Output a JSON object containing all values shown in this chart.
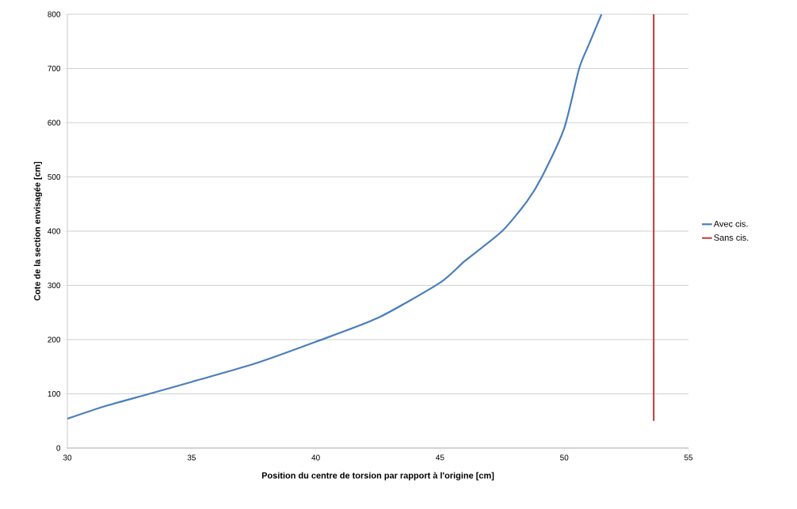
{
  "chart_data": {
    "type": "line",
    "xlabel": "Position du centre de torsion par rapport à l'origine [cm]",
    "ylabel": "Cote de la section envisagée [cm]",
    "xlim": [
      30,
      55
    ],
    "xticks": [
      30,
      35,
      40,
      45,
      50,
      55
    ],
    "ylim": [
      0,
      800
    ],
    "yticks": [
      0,
      100,
      200,
      300,
      400,
      500,
      600,
      700,
      800
    ],
    "grid": "y",
    "legend": "right",
    "marker": "none",
    "line_style": "solid",
    "series": [
      {
        "name": "Avec cis.",
        "color": "#4a7ebb",
        "x": [
          30,
          31.5,
          33.3,
          35,
          37.5,
          40,
          42.5,
          45,
          46,
          47.5,
          48.5,
          49.1,
          50,
          50.6,
          51,
          51.5
        ],
        "values": [
          54,
          77,
          100,
          122,
          155,
          196,
          240,
          305,
          345,
          400,
          455,
          500,
          590,
          700,
          745,
          800
        ]
      },
      {
        "name": "Sans cis.",
        "color": "#be4b48",
        "x": [
          53.6,
          53.6
        ],
        "values": [
          50,
          800
        ]
      }
    ]
  }
}
